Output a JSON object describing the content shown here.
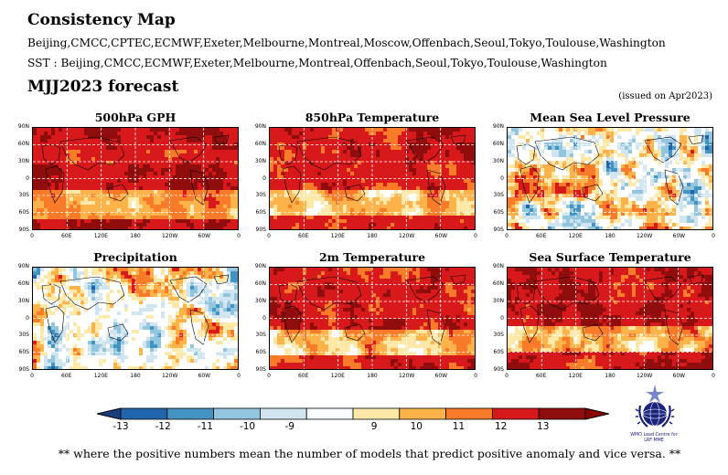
{
  "header": {
    "title": "Consistency Map",
    "models_line": "Beijing,CMCC,CPTEC,ECMWF,Exeter,Melbourne,Montreal,Moscow,Offenbach,Seoul,Tokyo,Toulouse,Washington",
    "sst_line": "SST : Beijing,CMCC,ECMWF,Exeter,Melbourne,Montreal,Offenbach,Seoul,Tokyo,Toulouse,Washington",
    "period": "MJJ2023 forecast",
    "issued": "(issued on Apr2023)"
  },
  "map_axes": {
    "lat_labels": [
      "90N",
      "60N",
      "30N",
      "0",
      "30S",
      "60S",
      "90S"
    ],
    "lon_labels": [
      "0",
      "60E",
      "120E",
      "180",
      "120W",
      "60W",
      "0"
    ]
  },
  "panels": [
    {
      "title": "500hPa GPH",
      "pattern": "warm-strong"
    },
    {
      "title": "850hPa Temperature",
      "pattern": "warm"
    },
    {
      "title": "Mean Sea Level Pressure",
      "pattern": "mixed"
    },
    {
      "title": "Precipitation",
      "pattern": "mixed-weak"
    },
    {
      "title": "2m Temperature",
      "pattern": "warm"
    },
    {
      "title": "Sea Surface Temperature",
      "pattern": "warm-ocean"
    }
  ],
  "colorbar": {
    "labels": [
      "-13",
      "-12",
      "-11",
      "-10",
      "-9",
      "9",
      "10",
      "11",
      "12",
      "13"
    ],
    "colors": [
      "#2166ac",
      "#4393c3",
      "#92c5de",
      "#d1e5f0",
      "#f7fbff",
      "#ffffff",
      "#fee8a8",
      "#fdb24a",
      "#f77b29",
      "#d7191c",
      "#8f0d0d"
    ],
    "under_color": "#1a3d7c",
    "over_color": "#8b0000"
  },
  "logo": {
    "line1": "WMO Lead Centre for",
    "line2": "LRF MME"
  },
  "footnote": "** where the positive numbers mean the number of models that predict positive anomaly and vice versa. **"
}
